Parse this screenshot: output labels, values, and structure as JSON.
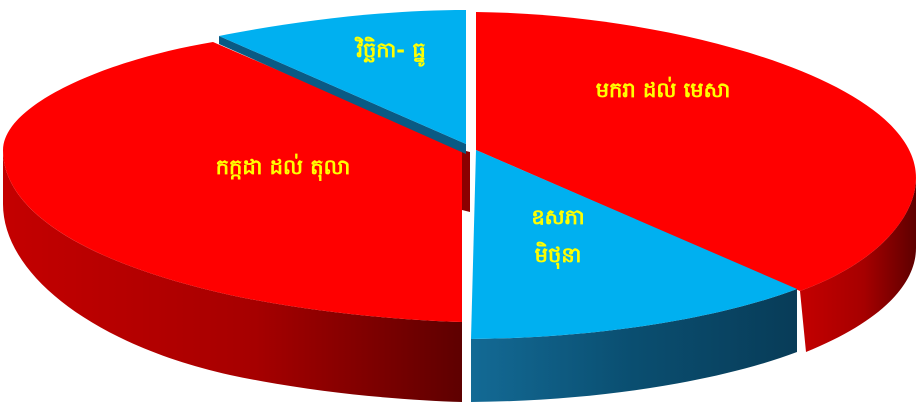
{
  "chart_data": {
    "type": "pie",
    "style": "3d-exploded",
    "legend": "none",
    "slices": [
      {
        "label_lines": [
          "មករា ដល់ មេសា"
        ],
        "value": 40,
        "color": "#ff0000"
      },
      {
        "label_lines": [
          "ឧសភា",
          "មិថុនា"
        ],
        "value": 10,
        "color": "#00b0f0"
      },
      {
        "label_lines": [
          "កក្កដា ដល់ តុលា"
        ],
        "value": 40,
        "color": "#ff0000"
      },
      {
        "label_lines": [
          "វិច្ឆិកា- ធ្នូ"
        ],
        "value": 10,
        "color": "#00b0f0"
      }
    ]
  }
}
